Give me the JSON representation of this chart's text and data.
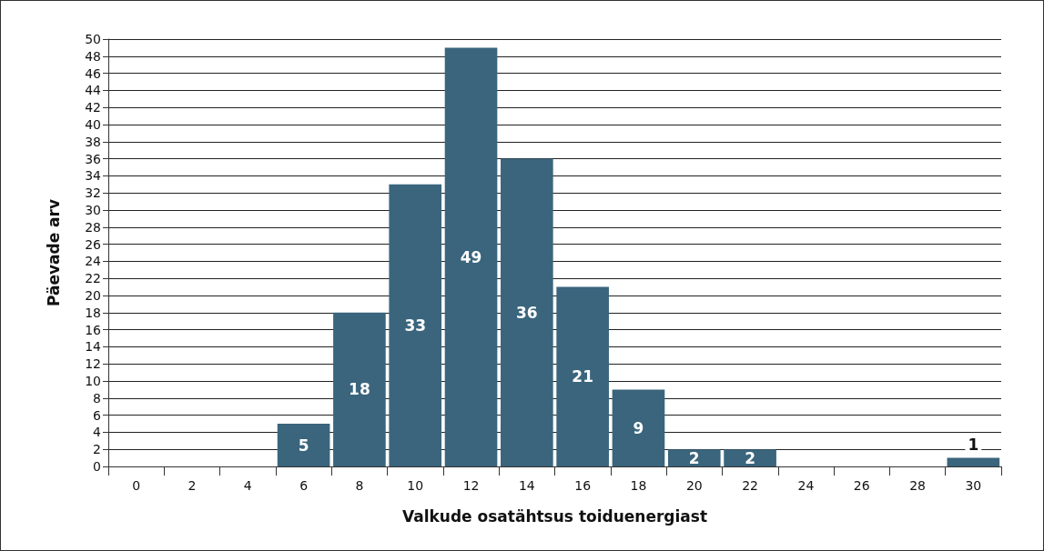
{
  "chart_data": {
    "type": "bar",
    "xlabel": "Valkude osatähtsus toiduenergiast",
    "ylabel": "Päevade arv",
    "categories": [
      "0",
      "2",
      "4",
      "6",
      "8",
      "10",
      "12",
      "14",
      "16",
      "18",
      "20",
      "22",
      "24",
      "26",
      "28",
      "30"
    ],
    "values": [
      0,
      0,
      0,
      5,
      18,
      33,
      49,
      36,
      21,
      9,
      2,
      2,
      0,
      0,
      0,
      1
    ],
    "value_labels": [
      null,
      null,
      null,
      "5",
      "18",
      "33",
      "49",
      "36",
      "21",
      "9",
      "2",
      "2",
      null,
      null,
      null,
      "1"
    ],
    "color": "#3a657d",
    "ylim": [
      0,
      50
    ],
    "yticks": [
      0,
      2,
      4,
      6,
      8,
      10,
      12,
      14,
      16,
      18,
      20,
      22,
      24,
      26,
      28,
      30,
      32,
      34,
      36,
      38,
      40,
      42,
      44,
      46,
      48,
      50
    ],
    "grid": "y"
  }
}
